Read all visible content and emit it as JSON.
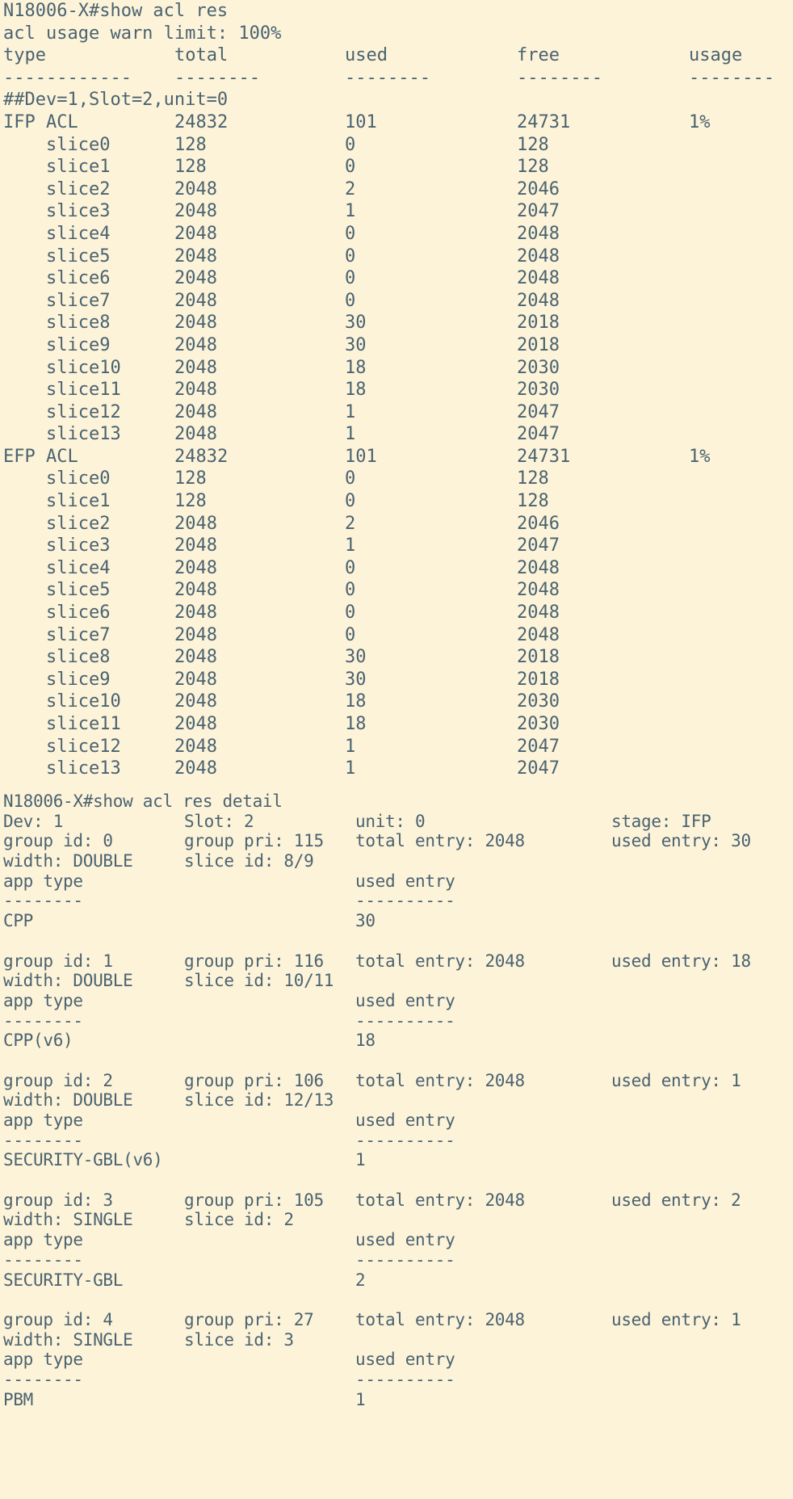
{
  "colors": {
    "background": "#fdf3d9",
    "text": "#4a6370"
  },
  "summary": {
    "command": "N18006-X#show acl res",
    "warn_limit": "acl usage warn limit: 100%",
    "headers": [
      "type",
      "total",
      "used",
      "free",
      "usage"
    ],
    "dashes": [
      "------------",
      "--------",
      "--------",
      "--------",
      "--------"
    ],
    "device_line": "##Dev=1,Slot=2,unit=0",
    "rows": [
      [
        "IFP ACL",
        "24832",
        "101",
        "24731",
        "1%"
      ],
      [
        "    slice0",
        "128",
        "0",
        "128",
        ""
      ],
      [
        "    slice1",
        "128",
        "0",
        "128",
        ""
      ],
      [
        "    slice2",
        "2048",
        "2",
        "2046",
        ""
      ],
      [
        "    slice3",
        "2048",
        "1",
        "2047",
        ""
      ],
      [
        "    slice4",
        "2048",
        "0",
        "2048",
        ""
      ],
      [
        "    slice5",
        "2048",
        "0",
        "2048",
        ""
      ],
      [
        "    slice6",
        "2048",
        "0",
        "2048",
        ""
      ],
      [
        "    slice7",
        "2048",
        "0",
        "2048",
        ""
      ],
      [
        "    slice8",
        "2048",
        "30",
        "2018",
        ""
      ],
      [
        "    slice9",
        "2048",
        "30",
        "2018",
        ""
      ],
      [
        "    slice10",
        "2048",
        "18",
        "2030",
        ""
      ],
      [
        "    slice11",
        "2048",
        "18",
        "2030",
        ""
      ],
      [
        "    slice12",
        "2048",
        "1",
        "2047",
        ""
      ],
      [
        "    slice13",
        "2048",
        "1",
        "2047",
        ""
      ],
      [
        "EFP ACL",
        "24832",
        "101",
        "24731",
        "1%"
      ],
      [
        "    slice0",
        "128",
        "0",
        "128",
        ""
      ],
      [
        "    slice1",
        "128",
        "0",
        "128",
        ""
      ],
      [
        "    slice2",
        "2048",
        "2",
        "2046",
        ""
      ],
      [
        "    slice3",
        "2048",
        "1",
        "2047",
        ""
      ],
      [
        "    slice4",
        "2048",
        "0",
        "2048",
        ""
      ],
      [
        "    slice5",
        "2048",
        "0",
        "2048",
        ""
      ],
      [
        "    slice6",
        "2048",
        "0",
        "2048",
        ""
      ],
      [
        "    slice7",
        "2048",
        "0",
        "2048",
        ""
      ],
      [
        "    slice8",
        "2048",
        "30",
        "2018",
        ""
      ],
      [
        "    slice9",
        "2048",
        "30",
        "2018",
        ""
      ],
      [
        "    slice10",
        "2048",
        "18",
        "2030",
        ""
      ],
      [
        "    slice11",
        "2048",
        "18",
        "2030",
        ""
      ],
      [
        "    slice12",
        "2048",
        "1",
        "2047",
        ""
      ],
      [
        "    slice13",
        "2048",
        "1",
        "2047",
        ""
      ]
    ]
  },
  "detail": {
    "command": "N18006-X#show acl res detail",
    "header": [
      "Dev: 1",
      "Slot: 2",
      "unit: 0",
      "stage: IFP"
    ],
    "app_headers": [
      "app type",
      "used entry"
    ],
    "app_dashes": [
      "--------",
      "----------"
    ],
    "groups": [
      {
        "line1": [
          "group id: 0",
          "group pri: 115",
          "total entry: 2048",
          "used entry: 30"
        ],
        "line2": [
          "width: DOUBLE",
          "slice id: 8/9"
        ],
        "apps": [
          [
            "CPP",
            "30"
          ]
        ]
      },
      {
        "line1": [
          "group id: 1",
          "group pri: 116",
          "total entry: 2048",
          "used entry: 18"
        ],
        "line2": [
          "width: DOUBLE",
          "slice id: 10/11"
        ],
        "apps": [
          [
            "CPP(v6)",
            "18"
          ]
        ]
      },
      {
        "line1": [
          "group id: 2",
          "group pri: 106",
          "total entry: 2048",
          "used entry: 1"
        ],
        "line2": [
          "width: DOUBLE",
          "slice id: 12/13"
        ],
        "apps": [
          [
            "SECURITY-GBL(v6)",
            "1"
          ]
        ]
      },
      {
        "line1": [
          "group id: 3",
          "group pri: 105",
          "total entry: 2048",
          "used entry: 2"
        ],
        "line2": [
          "width: SINGLE",
          "slice id: 2"
        ],
        "apps": [
          [
            "SECURITY-GBL",
            "2"
          ]
        ]
      },
      {
        "line1": [
          "group id: 4",
          "group pri: 27",
          "total entry: 2048",
          "used entry: 1"
        ],
        "line2": [
          "width: SINGLE",
          "slice id: 3"
        ],
        "apps": [
          [
            "PBM",
            "1"
          ]
        ]
      }
    ]
  }
}
